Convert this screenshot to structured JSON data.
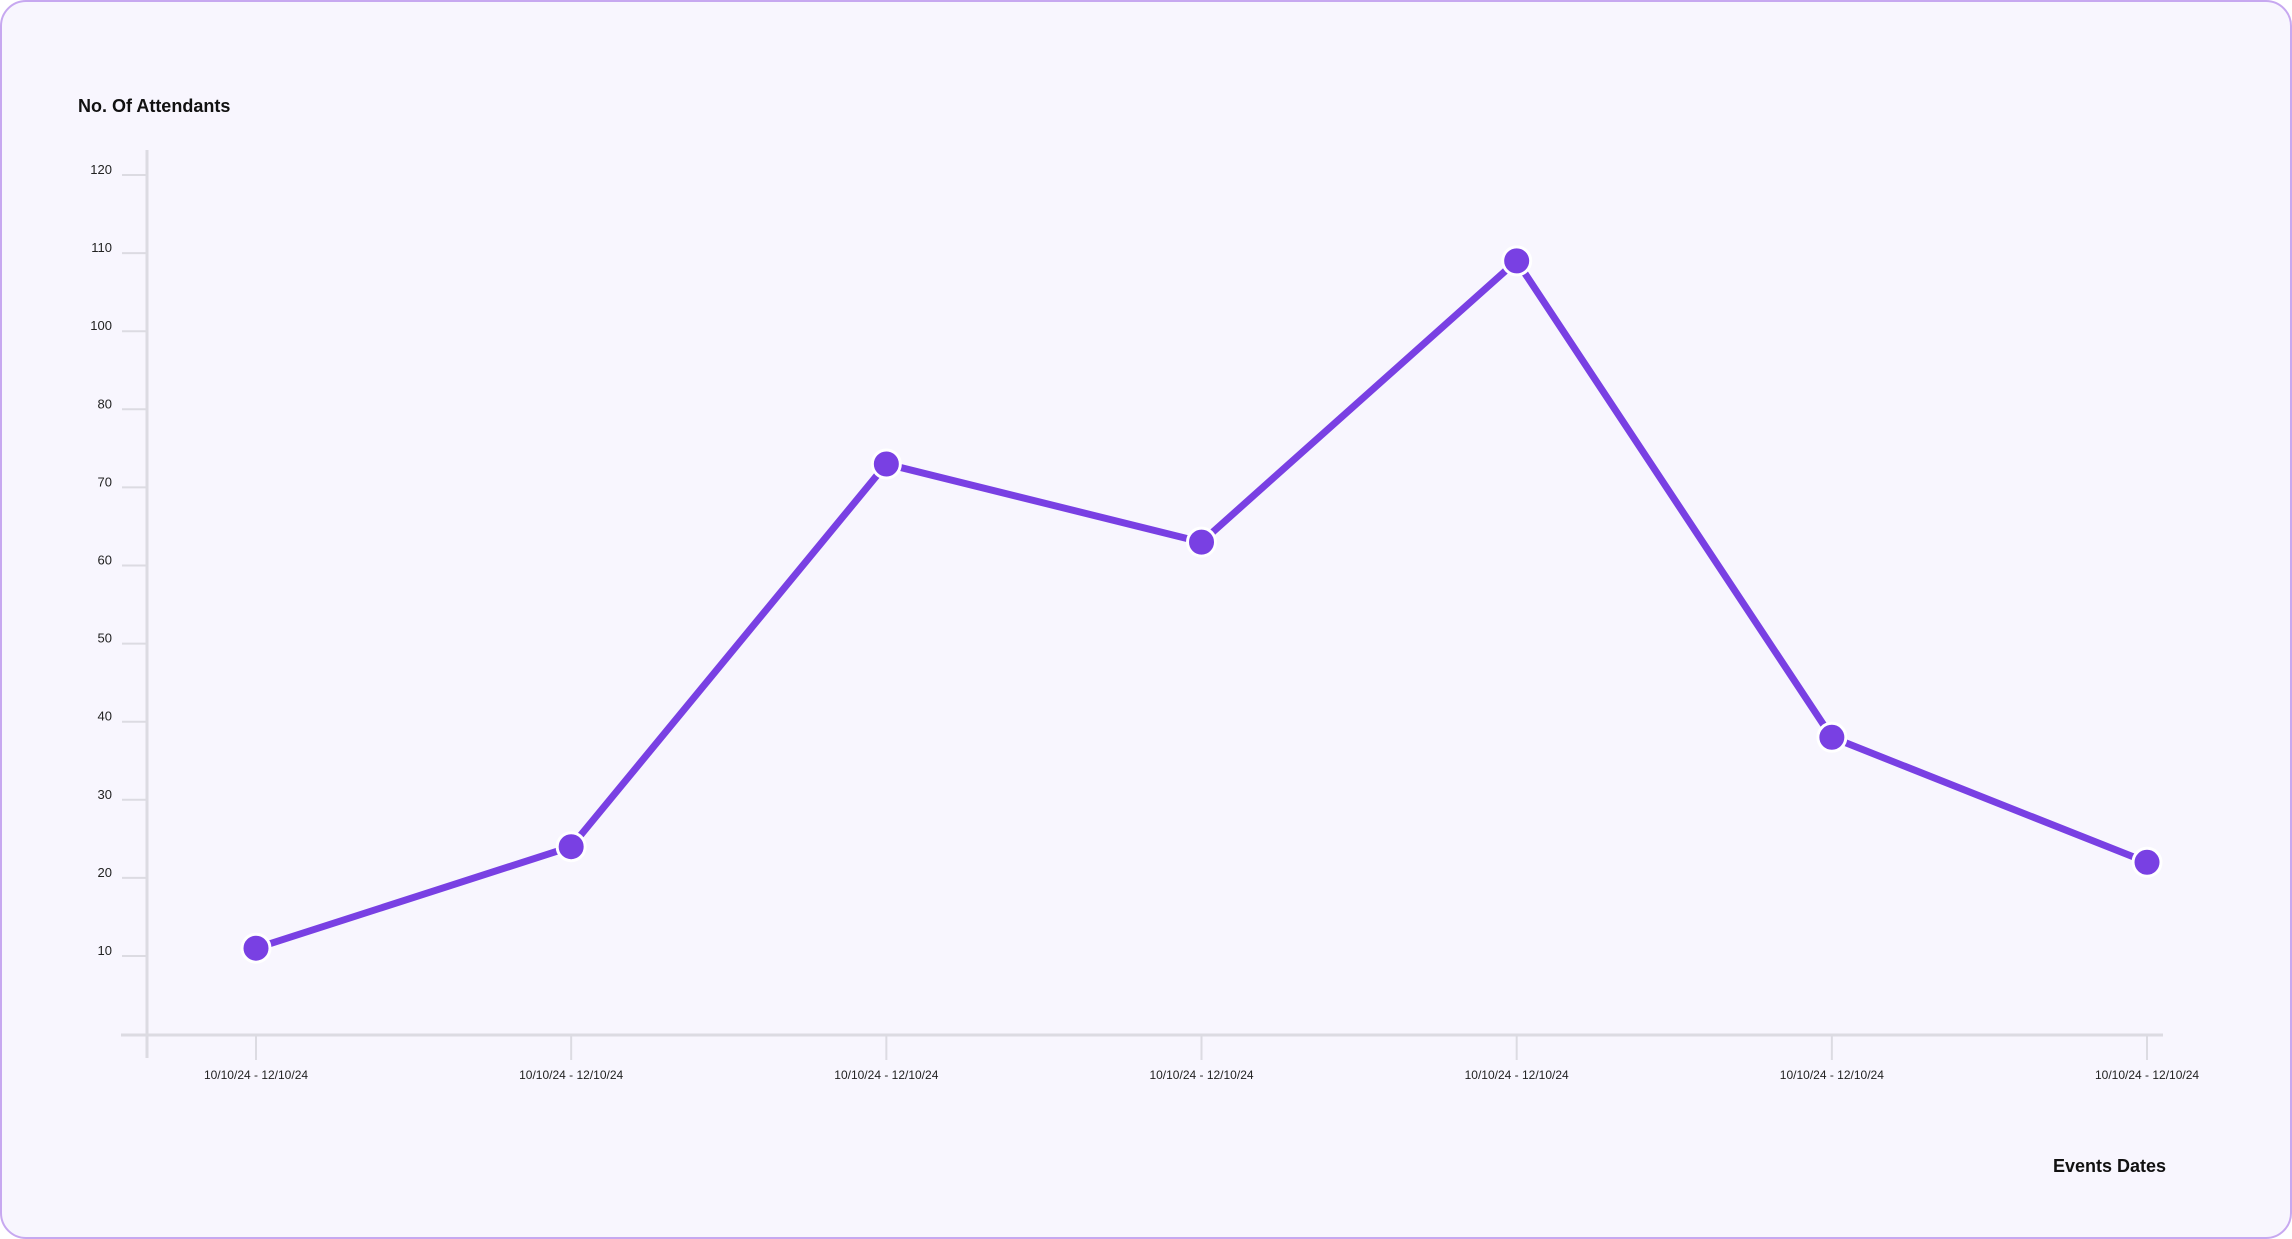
{
  "colors": {
    "line": "#7940e3",
    "point": "#7940e3",
    "point_stroke": "#ffffff",
    "axis": "#dcdbe2",
    "card_bg": "#f8f6fe",
    "card_border": "#c7a8f0"
  },
  "chart_data": {
    "type": "line",
    "ylabel": "No. Of Attendants",
    "xlabel": "Events Dates",
    "y_ticks": [
      "10",
      "20",
      "30",
      "40",
      "50",
      "60",
      "70",
      "80",
      "100",
      "110",
      "120"
    ],
    "categories": [
      "10/10/24 - 12/10/24",
      "10/10/24 - 12/10/24",
      "10/10/24 - 12/10/24",
      "10/10/24 - 12/10/24",
      "10/10/24 - 12/10/24",
      "10/10/24 - 12/10/24",
      "10/10/24 - 12/10/24"
    ],
    "series": [
      {
        "values": [
          11,
          24,
          73,
          63,
          109,
          38,
          22
        ]
      }
    ],
    "grid": false,
    "legend": "none"
  }
}
